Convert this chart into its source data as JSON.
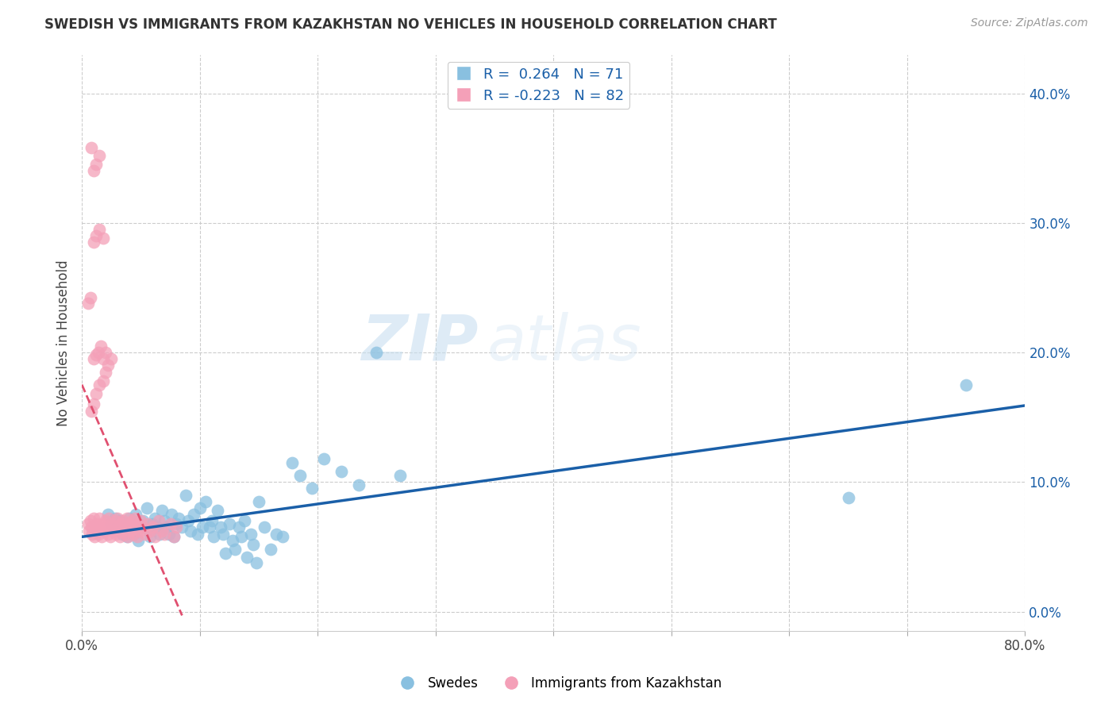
{
  "title": "SWEDISH VS IMMIGRANTS FROM KAZAKHSTAN NO VEHICLES IN HOUSEHOLD CORRELATION CHART",
  "source": "Source: ZipAtlas.com",
  "ylabel": "No Vehicles in Household",
  "xlim": [
    0.0,
    0.8
  ],
  "ylim": [
    -0.015,
    0.43
  ],
  "xtick_vals": [
    0.0,
    0.1,
    0.2,
    0.3,
    0.4,
    0.5,
    0.6,
    0.7,
    0.8
  ],
  "xtick_labels": [
    "0.0%",
    "",
    "",
    "",
    "",
    "",
    "",
    "",
    "80.0%"
  ],
  "ytick_vals": [
    0.0,
    0.1,
    0.2,
    0.3,
    0.4
  ],
  "ytick_labels": [
    "0.0%",
    "10.0%",
    "20.0%",
    "30.0%",
    "40.0%"
  ],
  "grid_color": "#cccccc",
  "background_color": "#ffffff",
  "blue_color": "#89c0e0",
  "pink_color": "#f4a0b8",
  "blue_line_color": "#1a5fa8",
  "pink_line_color": "#e05070",
  "legend_R1": "R =  0.264",
  "legend_N1": "N = 71",
  "legend_R2": "R = -0.223",
  "legend_N2": "N = 82",
  "legend_label1": "Swedes",
  "legend_label2": "Immigrants from Kazakhstan",
  "watermark_zip": "ZIP",
  "watermark_atlas": "atlas",
  "blue_scatter_x": [
    0.022,
    0.025,
    0.028,
    0.03,
    0.032,
    0.034,
    0.036,
    0.038,
    0.04,
    0.042,
    0.044,
    0.046,
    0.048,
    0.05,
    0.052,
    0.055,
    0.057,
    0.058,
    0.06,
    0.062,
    0.064,
    0.066,
    0.068,
    0.07,
    0.072,
    0.074,
    0.076,
    0.078,
    0.08,
    0.082,
    0.085,
    0.088,
    0.09,
    0.092,
    0.095,
    0.098,
    0.1,
    0.102,
    0.105,
    0.108,
    0.11,
    0.112,
    0.115,
    0.118,
    0.12,
    0.122,
    0.125,
    0.128,
    0.13,
    0.133,
    0.135,
    0.138,
    0.14,
    0.143,
    0.145,
    0.148,
    0.15,
    0.155,
    0.16,
    0.165,
    0.17,
    0.178,
    0.185,
    0.195,
    0.205,
    0.22,
    0.235,
    0.25,
    0.27,
    0.65,
    0.75
  ],
  "blue_scatter_y": [
    0.075,
    0.068,
    0.072,
    0.065,
    0.07,
    0.06,
    0.065,
    0.058,
    0.072,
    0.068,
    0.06,
    0.075,
    0.055,
    0.065,
    0.07,
    0.08,
    0.062,
    0.058,
    0.068,
    0.072,
    0.065,
    0.06,
    0.078,
    0.07,
    0.065,
    0.06,
    0.075,
    0.058,
    0.068,
    0.072,
    0.065,
    0.09,
    0.07,
    0.062,
    0.075,
    0.06,
    0.08,
    0.065,
    0.085,
    0.065,
    0.07,
    0.058,
    0.078,
    0.065,
    0.06,
    0.045,
    0.068,
    0.055,
    0.048,
    0.065,
    0.058,
    0.07,
    0.042,
    0.06,
    0.052,
    0.038,
    0.085,
    0.065,
    0.048,
    0.06,
    0.058,
    0.115,
    0.105,
    0.095,
    0.118,
    0.108,
    0.098,
    0.2,
    0.105,
    0.088,
    0.175
  ],
  "pink_scatter_x": [
    0.005,
    0.006,
    0.007,
    0.008,
    0.009,
    0.01,
    0.011,
    0.012,
    0.013,
    0.014,
    0.015,
    0.016,
    0.017,
    0.018,
    0.019,
    0.02,
    0.021,
    0.022,
    0.023,
    0.024,
    0.025,
    0.026,
    0.027,
    0.028,
    0.029,
    0.03,
    0.031,
    0.032,
    0.033,
    0.034,
    0.035,
    0.036,
    0.037,
    0.038,
    0.039,
    0.04,
    0.041,
    0.042,
    0.043,
    0.044,
    0.045,
    0.046,
    0.047,
    0.048,
    0.049,
    0.05,
    0.052,
    0.054,
    0.056,
    0.058,
    0.06,
    0.062,
    0.065,
    0.068,
    0.07,
    0.075,
    0.078,
    0.08,
    0.008,
    0.01,
    0.012,
    0.015,
    0.018,
    0.02,
    0.022,
    0.025,
    0.01,
    0.012,
    0.015,
    0.018,
    0.01,
    0.012,
    0.015,
    0.008,
    0.01,
    0.012,
    0.014,
    0.016,
    0.018,
    0.02,
    0.005,
    0.007
  ],
  "pink_scatter_y": [
    0.068,
    0.062,
    0.07,
    0.065,
    0.06,
    0.072,
    0.058,
    0.065,
    0.068,
    0.06,
    0.072,
    0.065,
    0.058,
    0.068,
    0.062,
    0.07,
    0.065,
    0.06,
    0.072,
    0.058,
    0.068,
    0.062,
    0.065,
    0.07,
    0.06,
    0.072,
    0.065,
    0.058,
    0.068,
    0.062,
    0.07,
    0.065,
    0.06,
    0.072,
    0.058,
    0.068,
    0.062,
    0.065,
    0.07,
    0.06,
    0.072,
    0.065,
    0.058,
    0.068,
    0.062,
    0.07,
    0.065,
    0.06,
    0.068,
    0.062,
    0.065,
    0.058,
    0.07,
    0.062,
    0.06,
    0.068,
    0.058,
    0.065,
    0.155,
    0.16,
    0.168,
    0.175,
    0.178,
    0.185,
    0.19,
    0.195,
    0.285,
    0.29,
    0.295,
    0.288,
    0.34,
    0.345,
    0.352,
    0.358,
    0.195,
    0.198,
    0.2,
    0.205,
    0.195,
    0.2,
    0.238,
    0.242
  ]
}
